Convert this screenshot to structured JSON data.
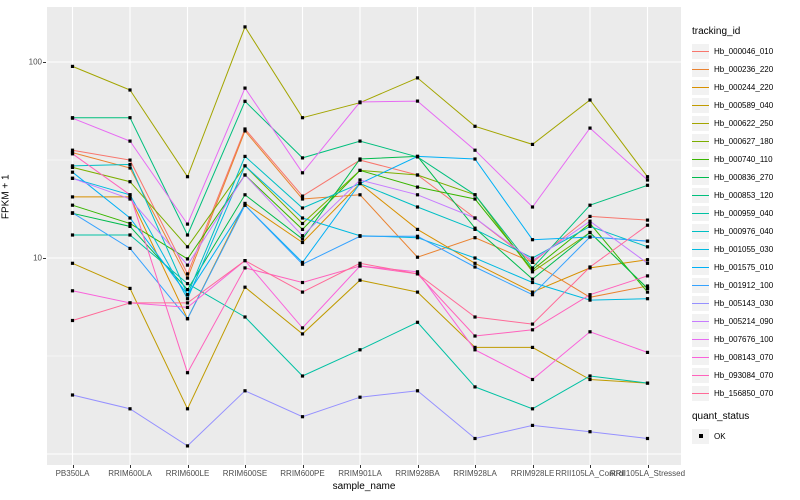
{
  "chart_data": {
    "type": "line",
    "title": "",
    "xlabel": "sample_name",
    "ylabel": "FPKM + 1",
    "y_scale": "log10",
    "y_axis_ticks": [
      {
        "label": "100",
        "value": 100
      },
      {
        "label": "10",
        "value": 10
      }
    ],
    "y_major_gridlines": [
      1,
      10,
      100
    ],
    "y_minor_gridlines": [
      3.162,
      31.62
    ],
    "ylim": [
      0.88,
      190
    ],
    "panel_bg": "#EBEBEB",
    "grid_color": "#FFFFFF",
    "marker": "black-square",
    "categories": [
      "PB350LA",
      "RRIM600LA",
      "RRIM600LE",
      "RRIM600SE",
      "RRIM600PE",
      "RRIM901LA",
      "RRIM928BA",
      "RRIM928LA",
      "RRIM928LE",
      "RRII105LA_Control",
      "RRII105LA_Stressed"
    ],
    "legend": {
      "title": "tracking_id",
      "position": "right"
    },
    "quant_status": {
      "title": "quant_status",
      "entries": [
        "OK"
      ]
    },
    "series": [
      {
        "name": "Hb_000046_010",
        "color": "#F8766D",
        "values": [
          35.5,
          31.6,
          8.3,
          45.5,
          20.7,
          31.6,
          26.5,
          16.0,
          9.5,
          16.3,
          15.6
        ]
      },
      {
        "name": "Hb_000236_220",
        "color": "#EA8331",
        "values": [
          34.5,
          28.8,
          7.9,
          44.5,
          20.0,
          21.0,
          10.1,
          12.7,
          9.5,
          6.3,
          7.2
        ]
      },
      {
        "name": "Hb_000244_220",
        "color": "#D89000",
        "values": [
          20.5,
          20.5,
          4.9,
          19.0,
          12.0,
          24.0,
          14.0,
          9.4,
          6.7,
          8.9,
          9.8
        ]
      },
      {
        "name": "Hb_000589_040",
        "color": "#C09B00",
        "values": [
          9.4,
          7.0,
          1.7,
          7.1,
          4.1,
          7.7,
          6.7,
          3.5,
          3.5,
          2.4,
          2.3
        ]
      },
      {
        "name": "Hb_000622_250",
        "color": "#A3A500",
        "values": [
          95,
          72,
          26,
          151,
          52,
          62,
          83,
          47,
          38,
          64,
          26
        ]
      },
      {
        "name": "Hb_000627_180",
        "color": "#7CAE00",
        "values": [
          29,
          24.5,
          11.4,
          29.5,
          15,
          28,
          26.5,
          21,
          8.5,
          13.5,
          7.0
        ]
      },
      {
        "name": "Hb_000740_110",
        "color": "#39B600",
        "values": [
          18.6,
          15,
          9.9,
          26.5,
          14,
          28,
          23,
          20,
          8.7,
          15,
          6.7
        ]
      },
      {
        "name": "Hb_000836_270",
        "color": "#00BB4E",
        "values": [
          16.9,
          14.5,
          6.9,
          21,
          12.5,
          32,
          33,
          14.2,
          7.8,
          13.5,
          7.0
        ]
      },
      {
        "name": "Hb_000853_120",
        "color": "#00BF7D",
        "values": [
          52,
          52,
          13.1,
          63,
          32.4,
          39.5,
          32.8,
          21,
          8.9,
          18.6,
          23.5
        ]
      },
      {
        "name": "Hb_000959_040",
        "color": "#00C1A3",
        "values": [
          13.1,
          13.1,
          7.4,
          5.0,
          2.5,
          3.4,
          4.7,
          2.2,
          1.7,
          2.5,
          2.3
        ]
      },
      {
        "name": "Hb_000976_040",
        "color": "#00BFC4",
        "values": [
          29.5,
          30,
          6.5,
          33,
          18,
          24,
          18.2,
          14,
          10,
          14.5,
          11.4
        ]
      },
      {
        "name": "Hb_001055_030",
        "color": "#00BAE0",
        "values": [
          25.5,
          21,
          6.2,
          29.5,
          16,
          13,
          12.7,
          10,
          7.5,
          6.1,
          6.2
        ]
      },
      {
        "name": "Hb_001575_010",
        "color": "#00B0F6",
        "values": [
          27.4,
          16,
          6.5,
          18.6,
          9.5,
          24,
          33,
          32,
          12.4,
          12.8,
          12.2
        ]
      },
      {
        "name": "Hb_001912_100",
        "color": "#35A2FF",
        "values": [
          17,
          11.2,
          4.9,
          18.6,
          9.3,
          12.9,
          12.9,
          9.0,
          6.5,
          12.8,
          12.2
        ]
      },
      {
        "name": "Hb_005143_030",
        "color": "#9590FF",
        "values": [
          2.0,
          1.7,
          1.1,
          2.1,
          1.55,
          1.95,
          2.1,
          1.2,
          1.4,
          1.3,
          1.2
        ]
      },
      {
        "name": "Hb_005214_090",
        "color": "#C77CFF",
        "values": [
          25.5,
          20,
          9.2,
          26.5,
          13,
          25,
          21,
          16,
          9.7,
          15.4,
          9.4
        ]
      },
      {
        "name": "Hb_007676_100",
        "color": "#E76BF3",
        "values": [
          51.7,
          39.5,
          14.9,
          73.6,
          27.2,
          62.5,
          63.2,
          35.5,
          18.2,
          46,
          25
        ]
      },
      {
        "name": "Hb_008143_070",
        "color": "#FA62DB",
        "values": [
          6.8,
          5.9,
          5.6,
          9.7,
          4.4,
          9.1,
          8.5,
          3.4,
          2.4,
          4.2,
          3.3
        ]
      },
      {
        "name": "Hb_093084_070",
        "color": "#FF62BC",
        "values": [
          34,
          21,
          2.6,
          8.9,
          7.5,
          9.1,
          8.3,
          4.0,
          4.3,
          6.5,
          8.1
        ]
      },
      {
        "name": "Hb_156850_070",
        "color": "#FF6A98",
        "values": [
          4.8,
          5.9,
          5.9,
          9.7,
          6.7,
          9.4,
          8.3,
          5.0,
          4.6,
          9.0,
          14.7
        ]
      }
    ]
  }
}
